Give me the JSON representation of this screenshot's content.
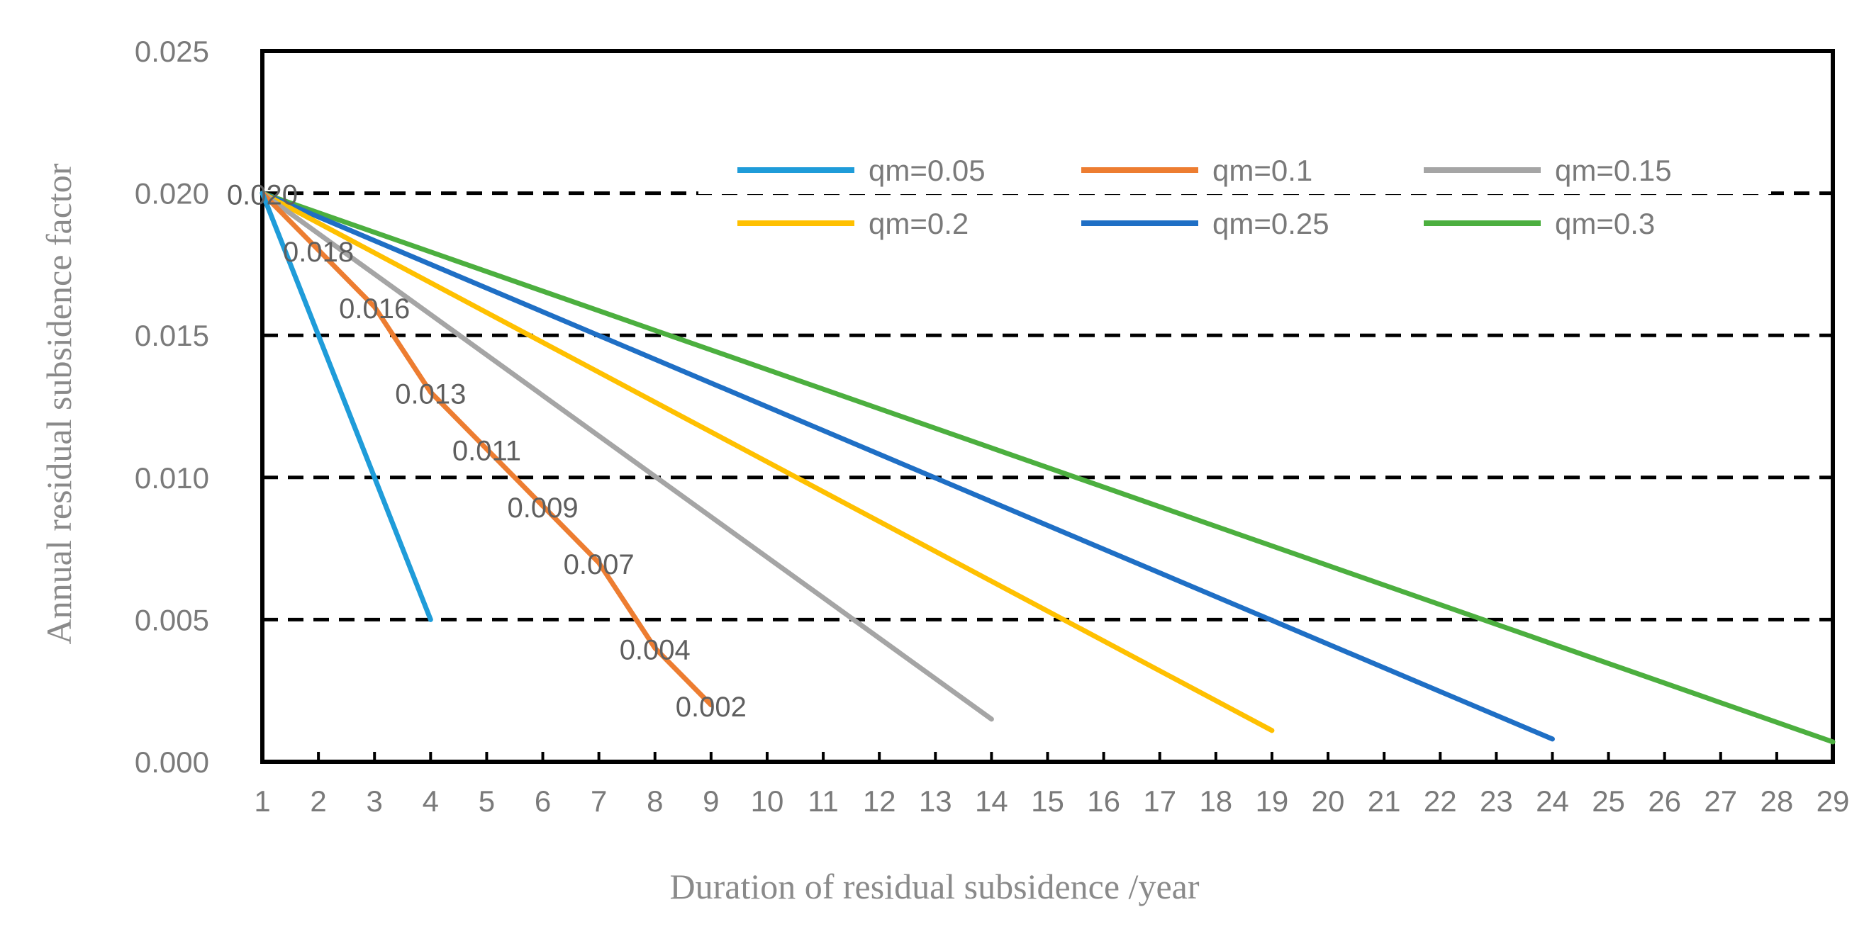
{
  "chart_data": {
    "type": "line",
    "xlabel": "Duration of residual subsidence /year",
    "ylabel": "Annual residual subsidence factor",
    "xlim": [
      1,
      29
    ],
    "ylim": [
      0,
      0.025
    ],
    "x_ticks": [
      "1",
      "2",
      "3",
      "4",
      "5",
      "6",
      "7",
      "8",
      "9",
      "10",
      "11",
      "12",
      "13",
      "14",
      "15",
      "16",
      "17",
      "18",
      "19",
      "20",
      "21",
      "22",
      "23",
      "24",
      "25",
      "26",
      "27",
      "28",
      "29"
    ],
    "y_ticks": [
      "0.000",
      "0.005",
      "0.010",
      "0.015",
      "0.020",
      "0.025"
    ],
    "gridlines": "horizontal dashed",
    "legend_position": "top-right",
    "series": [
      {
        "name": "qm=0.05",
        "color": "#1F9CD9",
        "x": [
          1,
          4
        ],
        "y": [
          0.02,
          0.005
        ]
      },
      {
        "name": "qm=0.1",
        "color": "#ED7D31",
        "x": [
          1,
          2,
          3,
          4,
          5,
          6,
          7,
          8,
          9
        ],
        "y": [
          0.02,
          0.018,
          0.016,
          0.013,
          0.011,
          0.009,
          0.007,
          0.004,
          0.002
        ],
        "data_labels": [
          "0.020",
          "0.018",
          "0.016",
          "0.013",
          "0.011",
          "0.009",
          "0.007",
          "0.004",
          "0.002"
        ]
      },
      {
        "name": "qm=0.15",
        "color": "#A5A5A5",
        "x": [
          1,
          14
        ],
        "y": [
          0.02,
          0.0015
        ]
      },
      {
        "name": "qm=0.2",
        "color": "#FFC000",
        "x": [
          1,
          19
        ],
        "y": [
          0.02,
          0.0011
        ]
      },
      {
        "name": "qm=0.25",
        "color": "#1F6FC5",
        "x": [
          1,
          24
        ],
        "y": [
          0.02,
          0.0008
        ]
      },
      {
        "name": "qm=0.3",
        "color": "#4CAF3F",
        "x": [
          1,
          29
        ],
        "y": [
          0.02,
          0.0007
        ]
      }
    ]
  }
}
